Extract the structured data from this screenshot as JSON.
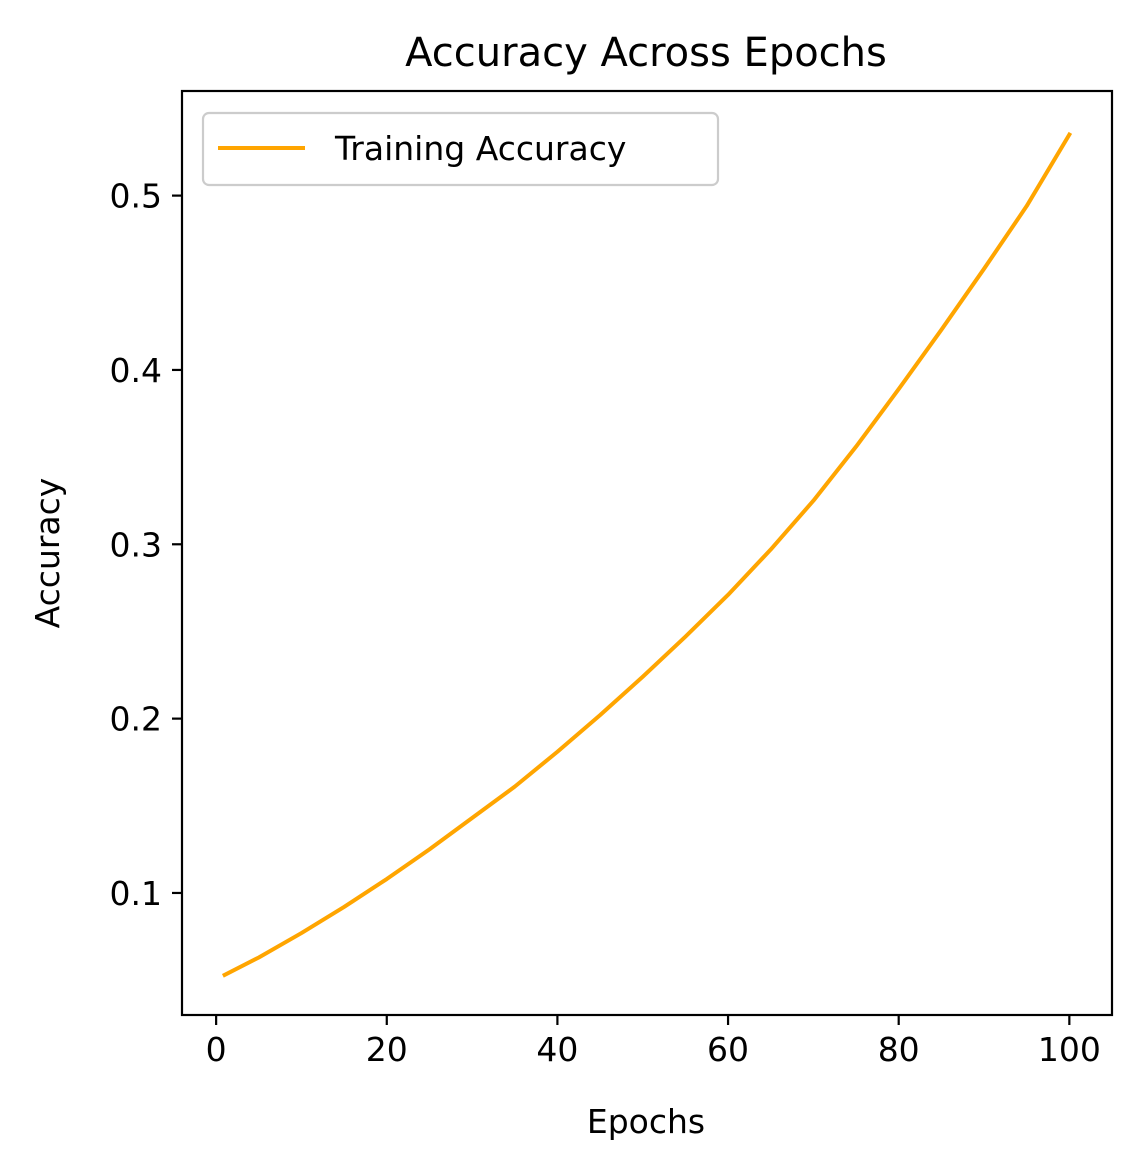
{
  "chart_data": {
    "type": "line",
    "title": "Accuracy Across Epochs",
    "xlabel": "Epochs",
    "ylabel": "Accuracy",
    "xlim": [
      -4,
      105
    ],
    "ylim": [
      0.03,
      0.56
    ],
    "xticks": [
      0,
      20,
      40,
      60,
      80,
      100
    ],
    "yticks": [
      0.1,
      0.2,
      0.3,
      0.4,
      0.5
    ],
    "grid": false,
    "legend_position": "upper-left",
    "series": [
      {
        "name": "Training Accuracy",
        "color": "#ffa500",
        "x": [
          1,
          5,
          10,
          15,
          20,
          25,
          30,
          35,
          40,
          45,
          50,
          55,
          60,
          65,
          70,
          75,
          80,
          85,
          90,
          95,
          100
        ],
        "y": [
          0.053,
          0.063,
          0.077,
          0.092,
          0.108,
          0.125,
          0.143,
          0.161,
          0.181,
          0.202,
          0.224,
          0.247,
          0.271,
          0.297,
          0.325,
          0.356,
          0.389,
          0.423,
          0.458,
          0.494,
          0.535
        ]
      }
    ]
  }
}
